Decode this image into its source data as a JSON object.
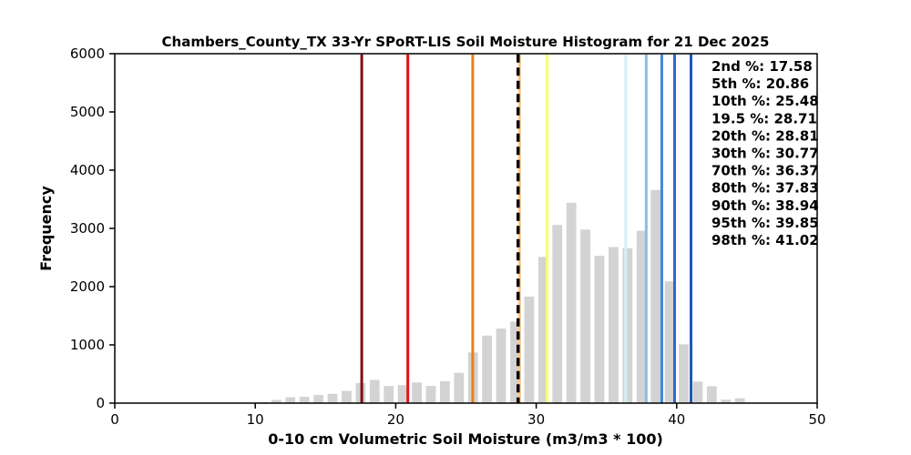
{
  "title": "Chambers_County_TX 33-Yr SPoRT-LIS Soil Moisture Histogram for 21 Dec 2025",
  "chart_data": {
    "type": "bar",
    "title": "Chambers_County_TX 33-Yr SPoRT-LIS Soil Moisture Histogram for 21 Dec 2025",
    "xlabel": "0-10 cm Volumetric Soil Moisture (m3/m3 * 100)",
    "ylabel": "Frequency",
    "xlim": [
      0,
      50
    ],
    "ylim": [
      0,
      6000
    ],
    "xticks": [
      0,
      10,
      20,
      30,
      40,
      50
    ],
    "yticks": [
      0,
      1000,
      2000,
      3000,
      4000,
      5000,
      6000
    ],
    "grid": false,
    "legend_position": "upper right inside",
    "bar_color": "#d3d3d3",
    "bin_width": 1.0,
    "bar_rwidth": 0.7,
    "bin_centers": [
      10.5,
      11.5,
      12.5,
      13.5,
      14.5,
      15.5,
      16.5,
      17.5,
      18.5,
      19.5,
      20.5,
      21.5,
      22.5,
      23.5,
      24.5,
      25.5,
      26.5,
      27.5,
      28.5,
      29.5,
      30.5,
      31.5,
      32.5,
      33.5,
      34.5,
      35.5,
      36.5,
      37.5,
      38.5,
      39.5,
      40.5,
      41.5,
      42.5,
      43.5,
      44.5
    ],
    "frequencies": [
      20,
      55,
      100,
      110,
      140,
      160,
      210,
      345,
      400,
      295,
      310,
      355,
      295,
      375,
      520,
      870,
      1160,
      1280,
      1400,
      1830,
      2510,
      3060,
      3440,
      2980,
      2530,
      2680,
      2660,
      2960,
      3660,
      2090,
      1010,
      370,
      290,
      60,
      85
    ],
    "percentile_lines": [
      {
        "label": "2nd %",
        "value": 17.58,
        "text": "2nd %: 17.58",
        "color": "#7f0e10",
        "dashed": false
      },
      {
        "label": "5th %",
        "value": 20.86,
        "text": "5th %: 20.86",
        "color": "#e01417",
        "dashed": false
      },
      {
        "label": "10th %",
        "value": 25.48,
        "text": "10th %: 25.48",
        "color": "#e98312",
        "dashed": false
      },
      {
        "label": "19.5 %",
        "value": 28.71,
        "text": "19.5 %: 28.71",
        "color": "#000000",
        "dashed": true
      },
      {
        "label": "20th %",
        "value": 28.81,
        "text": "20th %: 28.81",
        "color": "#f9c689",
        "dashed": false
      },
      {
        "label": "30th %",
        "value": 30.77,
        "text": "30th %: 30.77",
        "color": "#fdfa6d",
        "dashed": false
      },
      {
        "label": "70th %",
        "value": 36.37,
        "text": "70th %: 36.37",
        "color": "#d6eff8",
        "dashed": false
      },
      {
        "label": "80th %",
        "value": 37.83,
        "text": "80th %: 37.83",
        "color": "#8abde6",
        "dashed": false
      },
      {
        "label": "90th %",
        "value": 38.94,
        "text": "90th %: 38.94",
        "color": "#3e8ad9",
        "dashed": false
      },
      {
        "label": "95th %",
        "value": 39.85,
        "text": "95th %: 39.85",
        "color": "#2a6ace",
        "dashed": false
      },
      {
        "label": "98th %",
        "value": 41.02,
        "text": "98th %: 41.02",
        "color": "#1e55be",
        "dashed": false
      }
    ]
  }
}
